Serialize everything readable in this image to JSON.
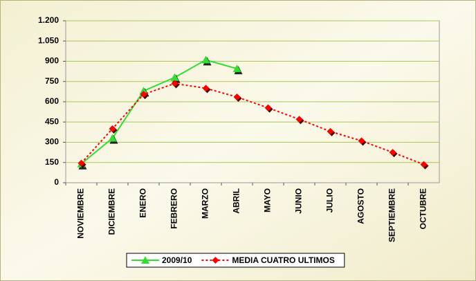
{
  "chart_data": {
    "type": "line",
    "categories": [
      "NOVIEMBRE",
      "DICIEMBRE",
      "ENERO",
      "FEBRERO",
      "MARZO",
      "ABRIL",
      "MAYO",
      "JUNIO",
      "JULIO",
      "AGOSTO",
      "SEPTIEMBRE",
      "OCTUBRE"
    ],
    "series": [
      {
        "name": "2009/10",
        "color": "#33dd33",
        "marker": "triangle",
        "dash": false,
        "values": [
          140,
          330,
          680,
          780,
          910,
          845,
          null,
          null,
          null,
          null,
          null,
          null
        ]
      },
      {
        "name": "MEDIA CUATRO ULTIMOS",
        "color": "#ff0000",
        "marker": "diamond",
        "dash": true,
        "values": [
          145,
          400,
          655,
          735,
          700,
          635,
          555,
          470,
          380,
          310,
          225,
          135
        ]
      }
    ],
    "ylim": [
      0,
      1200
    ],
    "yticks": [
      0,
      150,
      300,
      450,
      600,
      750,
      900,
      {
        "value": 1050,
        "label": "1.050"
      },
      {
        "value": 1200,
        "label": "1.200"
      }
    ],
    "grid": true,
    "legend": "bottom"
  }
}
